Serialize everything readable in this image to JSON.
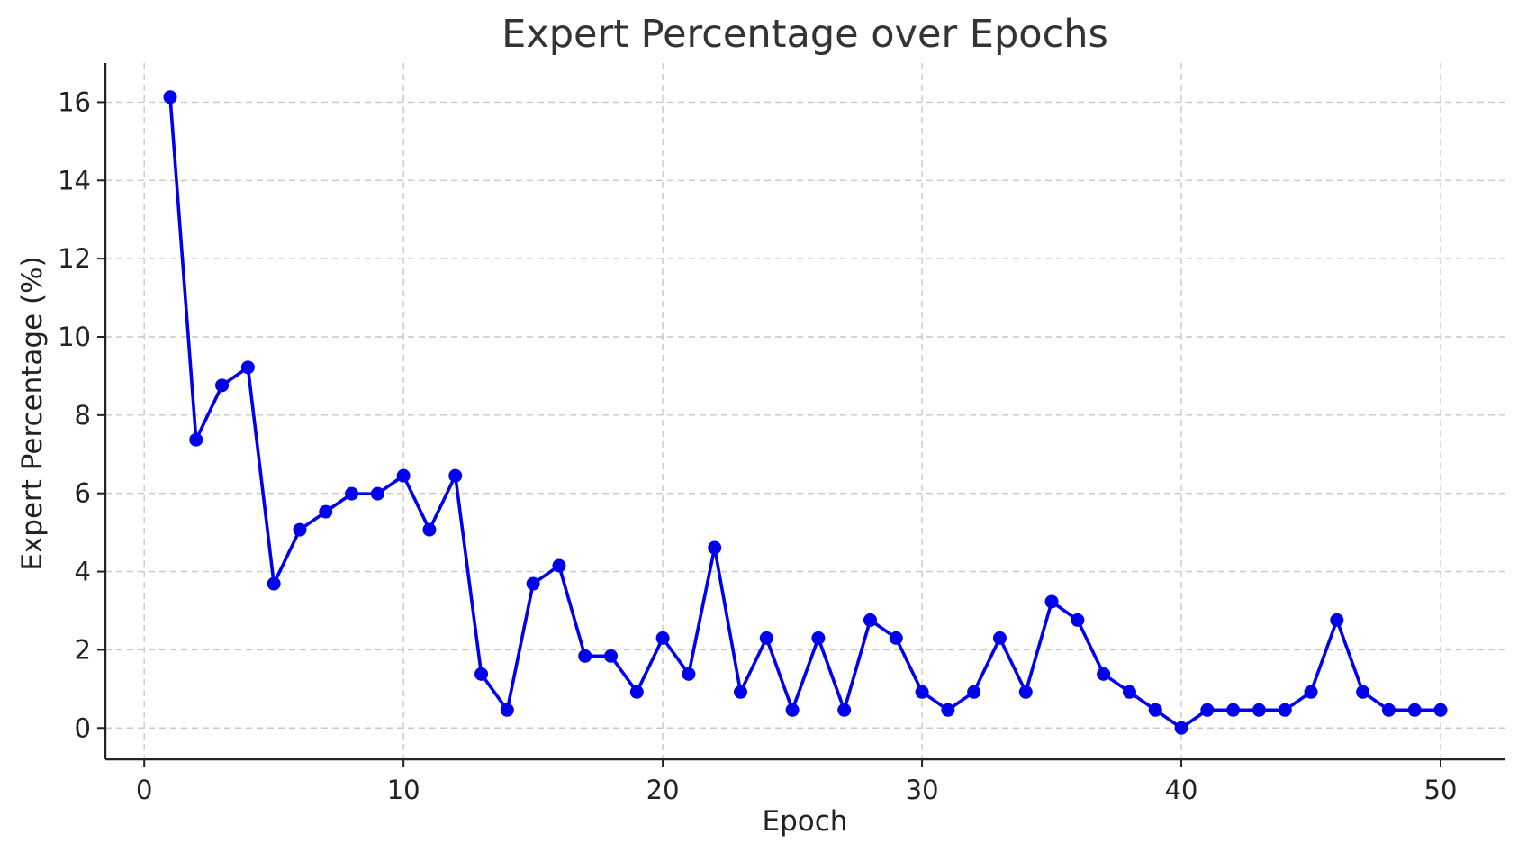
{
  "chart_data": {
    "type": "line",
    "title": "Expert Percentage over Epochs",
    "xlabel": "Epoch",
    "ylabel": "Expert Percentage (%)",
    "xlim": [
      -1.5,
      52.5
    ],
    "ylim": [
      -0.8,
      17.0
    ],
    "xticks": [
      0,
      10,
      20,
      30,
      40,
      50
    ],
    "yticks": [
      0,
      2,
      4,
      6,
      8,
      10,
      12,
      14,
      16
    ],
    "grid": true,
    "color": "#0000ee",
    "series": [
      {
        "x": [
          1,
          2,
          3,
          4,
          5,
          6,
          7,
          8,
          9,
          10,
          11,
          12,
          13,
          14,
          15,
          16,
          17,
          18,
          19,
          20,
          21,
          22,
          23,
          24,
          25,
          26,
          27,
          28,
          29,
          30,
          31,
          32,
          33,
          34,
          35,
          36,
          37,
          38,
          39,
          40,
          41,
          42,
          43,
          44,
          45,
          46,
          47,
          48,
          49,
          50
        ],
        "values": [
          16.13,
          7.37,
          8.76,
          9.22,
          3.69,
          5.07,
          5.53,
          5.99,
          5.99,
          6.45,
          5.07,
          6.45,
          1.38,
          0.46,
          3.69,
          4.15,
          1.84,
          1.84,
          0.92,
          2.3,
          1.38,
          4.61,
          0.92,
          2.3,
          0.46,
          2.3,
          0.46,
          2.76,
          2.3,
          0.92,
          0.46,
          0.92,
          2.3,
          0.92,
          3.23,
          2.76,
          1.38,
          0.92,
          0.46,
          0.0,
          0.46,
          0.46,
          0.46,
          0.46,
          0.92,
          2.76,
          0.92,
          0.46,
          0.46,
          0.46
        ]
      }
    ]
  }
}
